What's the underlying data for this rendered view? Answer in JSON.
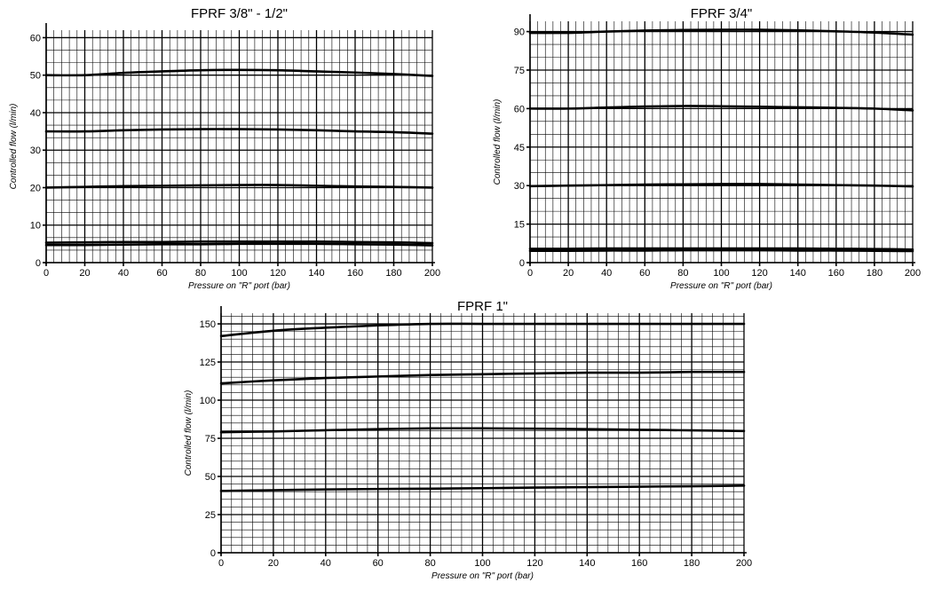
{
  "chart_data": [
    {
      "type": "line",
      "title": "FPRF 3/8\" - 1/2\"",
      "xlabel": "Pressure on \"R\" port (bar)",
      "ylabel": "Controlled flow (l/min)",
      "xlim": [
        0,
        200
      ],
      "ylim": [
        0,
        62
      ],
      "xticks": [
        0,
        20,
        40,
        60,
        80,
        100,
        120,
        140,
        160,
        180,
        200
      ],
      "yticks": [
        0,
        10,
        20,
        30,
        40,
        50,
        60
      ],
      "grid": true,
      "x": [
        0,
        20,
        40,
        60,
        80,
        100,
        120,
        140,
        160,
        180,
        200
      ],
      "series": [
        {
          "values": [
            50,
            50,
            50.6,
            51,
            51.3,
            51.4,
            51.3,
            51,
            50.7,
            50.3,
            49.8
          ]
        },
        {
          "values": [
            35,
            35,
            35.3,
            35.5,
            35.6,
            35.6,
            35.5,
            35.3,
            35,
            34.8,
            34.4
          ]
        },
        {
          "values": [
            20,
            20.2,
            20.4,
            20.5,
            20.6,
            20.7,
            20.7,
            20.5,
            20.3,
            20.2,
            20
          ]
        },
        {
          "values": [
            5.3,
            5.4,
            5.5,
            5.5,
            5.6,
            5.6,
            5.6,
            5.6,
            5.5,
            5.4,
            5.2
          ]
        },
        {
          "values": [
            4.7,
            4.7,
            4.8,
            4.9,
            4.9,
            5,
            5,
            5,
            4.9,
            4.8,
            4.6
          ]
        }
      ]
    },
    {
      "type": "line",
      "title": "FPRF 3/4\"",
      "xlabel": "Pressure on \"R\" port (bar)",
      "ylabel": "Controlled flow (l/min)",
      "xlim": [
        0,
        200
      ],
      "ylim": [
        0,
        94
      ],
      "xticks": [
        0,
        20,
        40,
        60,
        80,
        100,
        120,
        140,
        160,
        180,
        200
      ],
      "yticks": [
        0,
        15,
        30,
        45,
        60,
        75,
        90
      ],
      "grid": true,
      "x": [
        0,
        20,
        40,
        60,
        80,
        100,
        120,
        140,
        160,
        180,
        200
      ],
      "series": [
        {
          "values": [
            89.5,
            89.5,
            90,
            90.4,
            90.6,
            90.7,
            90.7,
            90.5,
            90.1,
            89.6,
            88.8
          ]
        },
        {
          "values": [
            60,
            60,
            60.4,
            60.8,
            61,
            60.9,
            60.7,
            60.5,
            60.3,
            60,
            59.3
          ]
        },
        {
          "values": [
            29.8,
            30,
            30.2,
            30.4,
            30.5,
            30.6,
            30.6,
            30.4,
            30.2,
            30,
            29.7
          ]
        },
        {
          "values": [
            5.4,
            5.4,
            5.5,
            5.5,
            5.5,
            5.5,
            5.5,
            5.5,
            5.4,
            5.3,
            5.1
          ]
        },
        {
          "values": [
            4.6,
            4.6,
            4.7,
            4.7,
            4.8,
            4.8,
            4.8,
            4.7,
            4.7,
            4.6,
            4.5
          ]
        }
      ]
    },
    {
      "type": "line",
      "title": "FPRF 1\"",
      "xlabel": "Pressure on \"R\" port (bar)",
      "ylabel": "Controlled flow (l/min)",
      "xlim": [
        0,
        200
      ],
      "ylim": [
        0,
        157
      ],
      "xticks": [
        0,
        20,
        40,
        60,
        80,
        100,
        120,
        140,
        160,
        180,
        200
      ],
      "yticks": [
        0,
        25,
        50,
        75,
        100,
        125,
        150
      ],
      "grid": true,
      "x": [
        0,
        20,
        40,
        60,
        80,
        100,
        120,
        140,
        160,
        180,
        200
      ],
      "series": [
        {
          "values": [
            142,
            145.5,
            147.5,
            149,
            150,
            150,
            150,
            150,
            150,
            150,
            150
          ]
        },
        {
          "values": [
            111,
            113,
            114.5,
            115.5,
            116.5,
            117,
            117.5,
            118,
            118,
            118.5,
            118.5
          ]
        },
        {
          "values": [
            79,
            79.5,
            80.3,
            81,
            81.5,
            81.5,
            81.3,
            81,
            80.6,
            80.2,
            79.8
          ]
        },
        {
          "values": [
            40.5,
            41,
            41.5,
            41.8,
            42,
            42.3,
            42.7,
            43,
            43.3,
            43.6,
            44
          ]
        }
      ]
    }
  ]
}
